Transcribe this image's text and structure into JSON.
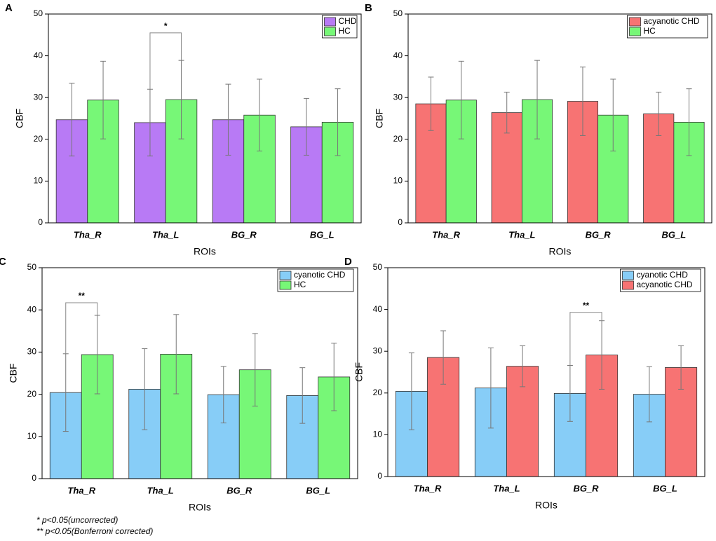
{
  "chart_data": [
    {
      "type": "bar",
      "panel": "A",
      "xlabel": "ROIs",
      "ylabel": "CBF",
      "categories": [
        "Tha_R",
        "Tha_L",
        "BG_R",
        "BG_L"
      ],
      "ylim": [
        0,
        50
      ],
      "yticks": [
        0,
        10,
        20,
        30,
        40,
        50
      ],
      "legend": "upper right",
      "series": [
        {
          "name": "CHD",
          "color": "#b87af5",
          "values": [
            24.7,
            24.0,
            24.7,
            23.0
          ],
          "errors": [
            8.7,
            8.0,
            8.5,
            6.8
          ]
        },
        {
          "name": "HC",
          "color": "#77f777",
          "values": [
            29.4,
            29.5,
            25.8,
            24.1
          ],
          "errors": [
            9.3,
            9.4,
            8.6,
            8.0
          ]
        }
      ],
      "annotations": [
        {
          "text": "*",
          "category": 1,
          "y": 45.5
        }
      ]
    },
    {
      "type": "bar",
      "panel": "B",
      "xlabel": "ROIs",
      "ylabel": "CBF",
      "categories": [
        "Tha_R",
        "Tha_L",
        "BG_R",
        "BG_L"
      ],
      "ylim": [
        0,
        50
      ],
      "yticks": [
        0,
        10,
        20,
        30,
        40,
        50
      ],
      "legend": "upper right",
      "series": [
        {
          "name": "acyanotic CHD",
          "color": "#f77373",
          "values": [
            28.5,
            26.4,
            29.1,
            26.1
          ],
          "errors": [
            6.4,
            4.9,
            8.2,
            5.2
          ]
        },
        {
          "name": "HC",
          "color": "#77f777",
          "values": [
            29.4,
            29.5,
            25.8,
            24.1
          ],
          "errors": [
            9.3,
            9.4,
            8.6,
            8.0
          ]
        }
      ],
      "annotations": []
    },
    {
      "type": "bar",
      "panel": "C",
      "xlabel": "ROIs",
      "ylabel": "CBF",
      "categories": [
        "Tha_R",
        "Tha_L",
        "BG_R",
        "BG_L"
      ],
      "ylim": [
        0,
        50
      ],
      "yticks": [
        0,
        10,
        20,
        30,
        40,
        50
      ],
      "legend": "upper right",
      "series": [
        {
          "name": "cyanotic CHD",
          "color": "#87cdf7",
          "values": [
            20.4,
            21.2,
            19.9,
            19.7
          ],
          "errors": [
            9.2,
            9.6,
            6.7,
            6.6
          ]
        },
        {
          "name": "HC",
          "color": "#77f777",
          "values": [
            29.4,
            29.5,
            25.8,
            24.1
          ],
          "errors": [
            9.3,
            9.4,
            8.6,
            8.0
          ]
        }
      ],
      "annotations": [
        {
          "text": "**",
          "category": 0,
          "y": 41.7
        }
      ]
    },
    {
      "type": "bar",
      "panel": "D",
      "xlabel": "ROIs",
      "ylabel": "CBF",
      "categories": [
        "Tha_R",
        "Tha_L",
        "BG_R",
        "BG_L"
      ],
      "ylim": [
        0,
        50
      ],
      "yticks": [
        0,
        10,
        20,
        30,
        40,
        50
      ],
      "legend": "upper right",
      "series": [
        {
          "name": "cyanotic CHD",
          "color": "#87cdf7",
          "values": [
            20.4,
            21.2,
            19.9,
            19.7
          ],
          "errors": [
            9.2,
            9.6,
            6.7,
            6.6
          ]
        },
        {
          "name": "acyanotic CHD",
          "color": "#f77373",
          "values": [
            28.5,
            26.4,
            29.1,
            26.1
          ],
          "errors": [
            6.4,
            4.9,
            8.2,
            5.2
          ]
        }
      ],
      "annotations": [
        {
          "text": "**",
          "category": 2,
          "y": 39.3
        }
      ]
    }
  ],
  "footnotes": [
    "*  p<0.05(uncorrected)",
    "**  p<0.05(Bonferroni corrected)"
  ]
}
